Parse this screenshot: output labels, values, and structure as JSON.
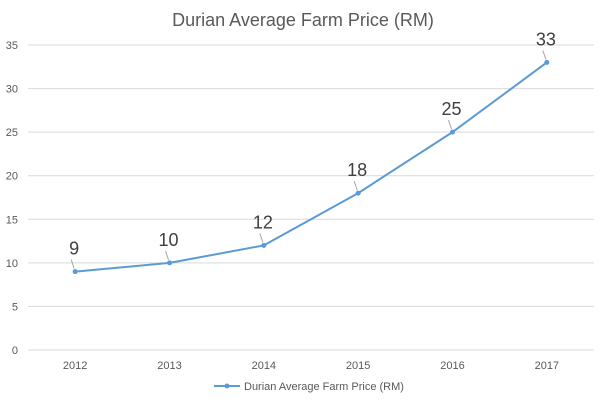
{
  "chart_data": {
    "type": "line",
    "title": "Durian Average Farm Price (RM)",
    "xlabel": "",
    "ylabel": "",
    "categories": [
      "2012",
      "2013",
      "2014",
      "2015",
      "2016",
      "2017"
    ],
    "series": [
      {
        "name": "Durian Average Farm Price (RM)",
        "values": [
          9,
          10,
          12,
          18,
          25,
          33
        ]
      }
    ],
    "ylim": [
      0,
      35
    ],
    "yticks": [
      0,
      5,
      10,
      15,
      20,
      25,
      30,
      35
    ],
    "grid": true,
    "legend_position": "bottom",
    "data_labels": true,
    "colors": {
      "line": "#5b9bd5",
      "grid": "#d9d9d9",
      "text": "#595959"
    }
  }
}
